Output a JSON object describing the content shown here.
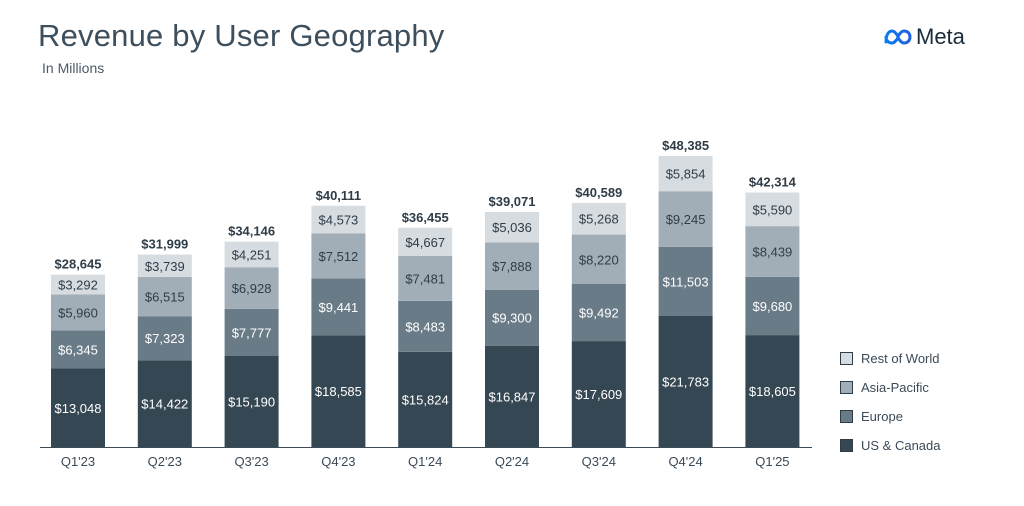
{
  "header": {
    "title": "Revenue by User Geography",
    "subtitle": "In Millions",
    "brand": "Meta"
  },
  "colors": {
    "us_canada": "#354753",
    "europe": "#6a7b88",
    "asia_pacific": "#a2aeb7",
    "rest_of_world": "#d7dce0",
    "axis": "#3b4a57"
  },
  "chart_data": {
    "type": "bar",
    "stacked": true,
    "categories": [
      "Q1'23",
      "Q2'23",
      "Q3'23",
      "Q4'23",
      "Q1'24",
      "Q2'24",
      "Q3'24",
      "Q4'24",
      "Q1'25"
    ],
    "series": [
      {
        "name": "US & Canada",
        "color": "#354753",
        "values": [
          13048,
          14422,
          15190,
          18585,
          15824,
          16847,
          17609,
          21783,
          18605
        ],
        "labels": [
          "$13,048",
          "$14,422",
          "$15,190",
          "$18,585",
          "$15,824",
          "$16,847",
          "$17,609",
          "$21,783",
          "$18,605"
        ]
      },
      {
        "name": "Europe",
        "color": "#6a7b88",
        "values": [
          6345,
          7323,
          7777,
          9441,
          8483,
          9300,
          9492,
          11503,
          9680
        ],
        "labels": [
          "$6,345",
          "$7,323",
          "$7,777",
          "$9,441",
          "$8,483",
          "$9,300",
          "$9,492",
          "$11,503",
          "$9,680"
        ]
      },
      {
        "name": "Asia-Pacific",
        "color": "#a2aeb7",
        "values": [
          5960,
          6515,
          6928,
          7512,
          7481,
          7888,
          8220,
          9245,
          8439
        ],
        "labels": [
          "$5,960",
          "$6,515",
          "$6,928",
          "$7,512",
          "$7,481",
          "$7,888",
          "$8,220",
          "$9,245",
          "$8,439"
        ]
      },
      {
        "name": "Rest of World",
        "color": "#d7dce0",
        "values": [
          3292,
          3739,
          4251,
          4573,
          4667,
          5036,
          5268,
          5854,
          5590
        ],
        "labels": [
          "$3,292",
          "$3,739",
          "$4,251",
          "$4,573",
          "$4,667",
          "$5,036",
          "$5,268",
          "$5,854",
          "$5,590"
        ]
      }
    ],
    "totals": [
      28645,
      31999,
      34146,
      40111,
      36455,
      39071,
      40589,
      48385,
      42314
    ],
    "total_labels": [
      "$28,645",
      "$31,999",
      "$34,146",
      "$40,111",
      "$36,455",
      "$39,071",
      "$40,589",
      "$48,385",
      "$42,314"
    ],
    "title": "Revenue by User Geography",
    "subtitle": "In Millions",
    "legend_order": [
      "Rest of World",
      "Asia-Pacific",
      "Europe",
      "US & Canada"
    ],
    "legend_position": "right",
    "grid": false
  }
}
